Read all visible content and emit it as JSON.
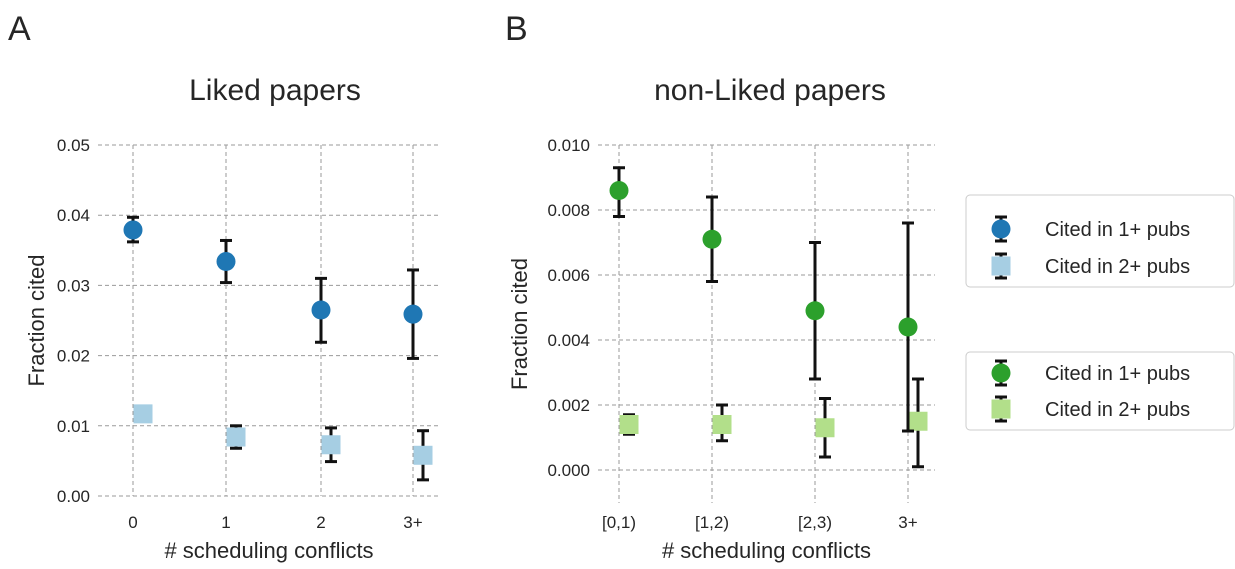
{
  "chart_data": [
    {
      "panel_label": "A",
      "type": "scatter",
      "title": "Liked papers",
      "xlabel": "# scheduling conflicts",
      "ylabel": "Fraction cited",
      "categories": [
        "0",
        "1",
        "2",
        "3+"
      ],
      "ylim": [
        0.0,
        0.05
      ],
      "yticks": [
        "0.00",
        "0.01",
        "0.02",
        "0.03",
        "0.04",
        "0.05"
      ],
      "grid": true,
      "legend": "right",
      "series": [
        {
          "name": "Cited in 1+ pubs",
          "marker": "circle",
          "color": "#1f77b4",
          "values": [
            0.0379,
            0.0334,
            0.0265,
            0.0259
          ],
          "err_low": [
            0.0362,
            0.0304,
            0.0219,
            0.0196
          ],
          "err_high": [
            0.0397,
            0.0364,
            0.031,
            0.0322
          ]
        },
        {
          "name": "Cited in 2+ pubs",
          "marker": "square",
          "color": "#a6cee3",
          "values": [
            0.0117,
            0.0084,
            0.0073,
            0.0058
          ],
          "err_low": [
            0.0117,
            0.0068,
            0.0049,
            0.0023
          ],
          "err_high": [
            0.0117,
            0.01,
            0.0097,
            0.0093
          ]
        }
      ]
    },
    {
      "panel_label": "B",
      "type": "scatter",
      "title": "non-Liked papers",
      "xlabel": "# scheduling conflicts",
      "ylabel": "Fraction cited",
      "categories": [
        "[0,1)",
        "[1,2)",
        "[2,3)",
        "3+"
      ],
      "ylim": [
        -0.001,
        0.01
      ],
      "yticks": [
        "0.000",
        "0.002",
        "0.004",
        "0.006",
        "0.008",
        "0.010"
      ],
      "grid": true,
      "legend": "right",
      "series": [
        {
          "name": "Cited in 1+ pubs",
          "marker": "circle",
          "color": "#2ca02c",
          "values": [
            0.0086,
            0.0071,
            0.0049,
            0.0044
          ],
          "err_low": [
            0.0078,
            0.0058,
            0.0028,
            0.0012
          ],
          "err_high": [
            0.0093,
            0.0084,
            0.007,
            0.0076
          ]
        },
        {
          "name": "Cited in 2+ pubs",
          "marker": "square",
          "color": "#b2df8a",
          "values": [
            0.0014,
            0.0014,
            0.0013,
            0.0015
          ],
          "err_low": [
            0.0011,
            0.0009,
            0.0004,
            0.0001
          ],
          "err_high": [
            0.0017,
            0.002,
            0.0022,
            0.0028
          ]
        }
      ]
    }
  ]
}
